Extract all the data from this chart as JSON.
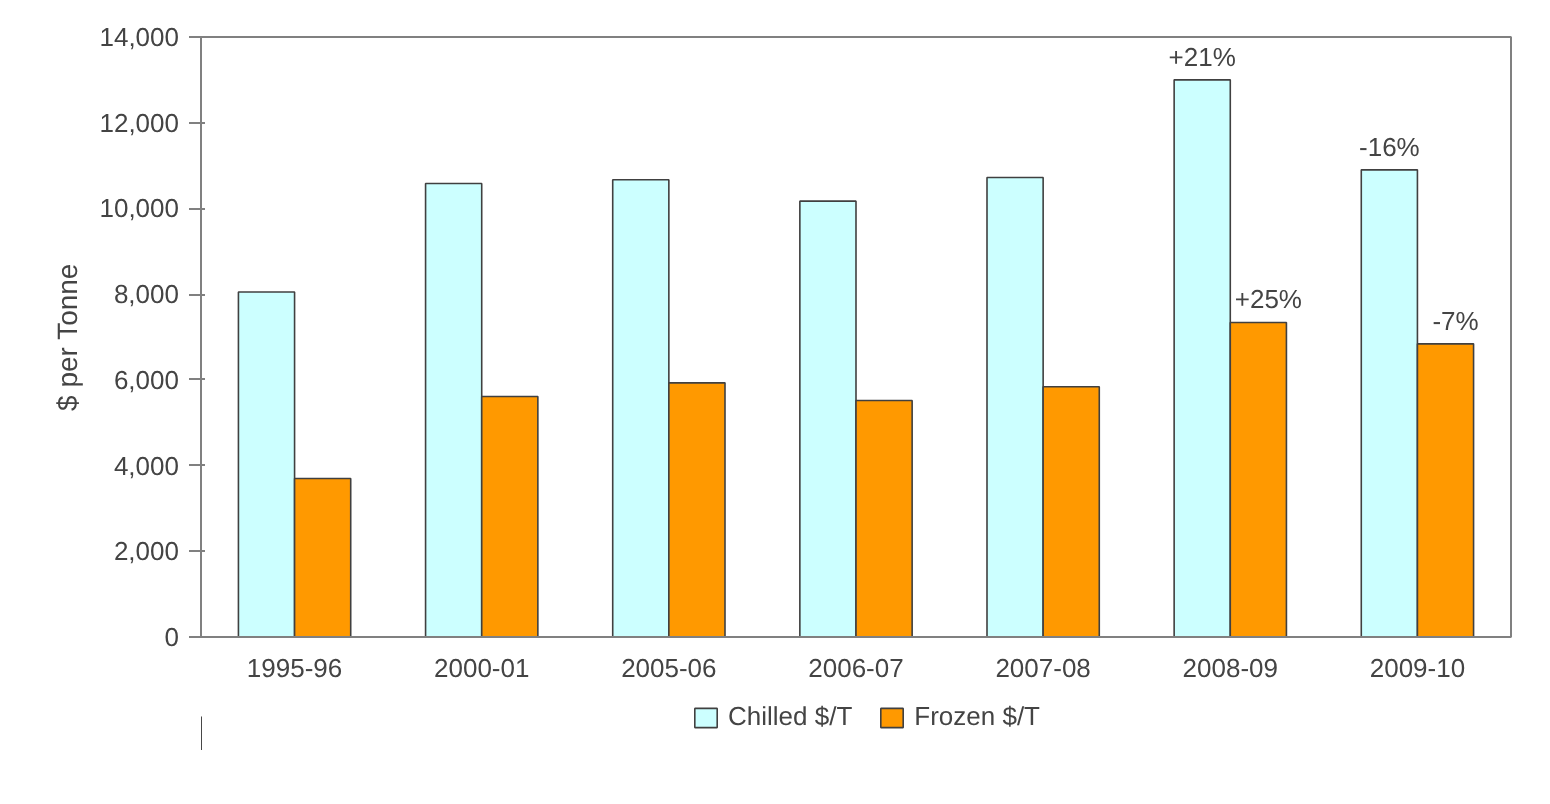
{
  "chart_data": {
    "type": "bar",
    "ylabel": "$ per Tonne",
    "categories": [
      "1995-96",
      "2000-01",
      "2005-06",
      "2006-07",
      "2007-08",
      "2008-09",
      "2009-10"
    ],
    "series": [
      {
        "name": "Chilled $/T",
        "color": "#ccffff",
        "values": [
          8050,
          10580,
          10670,
          10170,
          10720,
          13000,
          10900
        ]
      },
      {
        "name": "Frozen $/T",
        "color": "#ff9900",
        "values": [
          3700,
          5610,
          5930,
          5520,
          5840,
          7340,
          6840
        ]
      }
    ],
    "annotations": [
      {
        "text": "+21%",
        "x": "2008-09",
        "y": 13000
      },
      {
        "text": "-16%",
        "x": "2009-10",
        "y": 10900
      },
      {
        "text": "+25%",
        "x": "2008-09",
        "y": 7340
      },
      {
        "text": "-7%",
        "x": "2009-10",
        "y": 6840
      }
    ],
    "ylim": [
      0,
      14000
    ],
    "yticks": [
      {
        "value": 0,
        "label": "0"
      },
      {
        "value": 2000,
        "label": "2,000"
      },
      {
        "value": 4000,
        "label": "4,000"
      },
      {
        "value": 6000,
        "label": "6,000"
      },
      {
        "value": 8000,
        "label": "8,000"
      },
      {
        "value": 10000,
        "label": "10,000"
      },
      {
        "value": 12000,
        "label": "12,000"
      },
      {
        "value": 14000,
        "label": "14,000"
      }
    ],
    "grid": false,
    "legend": "bottom"
  }
}
